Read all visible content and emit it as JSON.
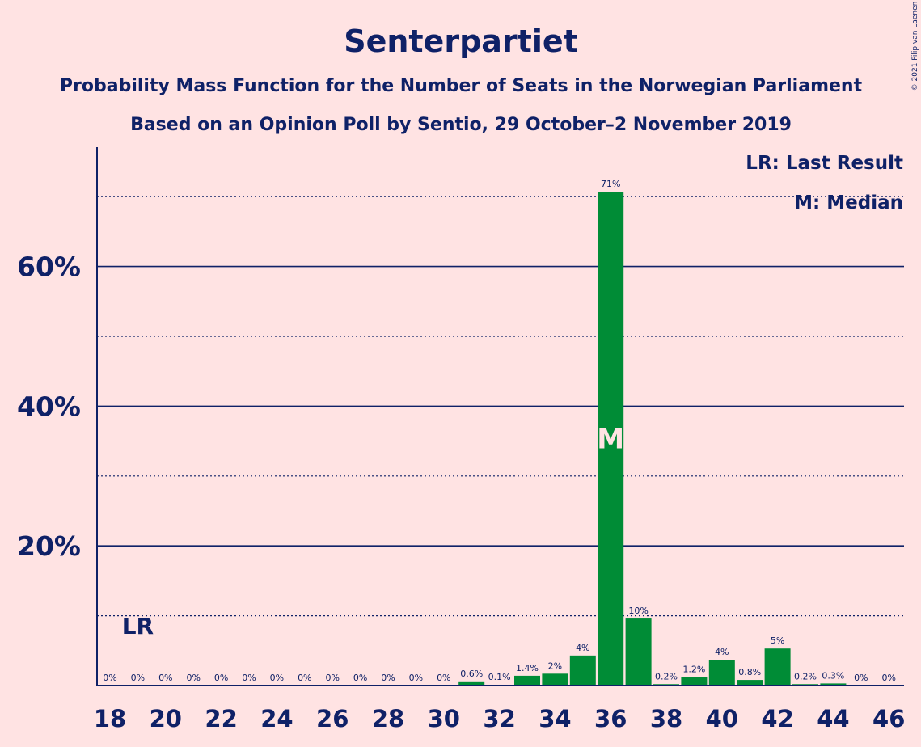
{
  "chart_data": {
    "type": "bar",
    "title": "Senterpartiet",
    "subtitle1": "Probability Mass Function for the Number of Seats in the Norwegian Parliament",
    "subtitle2": "Based on an Opinion Poll by Sentio, 29 October–2 November 2019",
    "x": [
      18,
      19,
      20,
      21,
      22,
      23,
      24,
      25,
      26,
      27,
      28,
      29,
      30,
      31,
      32,
      33,
      34,
      35,
      36,
      37,
      38,
      39,
      40,
      41,
      42,
      43,
      44,
      45,
      46
    ],
    "values": [
      0,
      0,
      0,
      0,
      0,
      0,
      0,
      0,
      0,
      0,
      0,
      0,
      0,
      0.6,
      0.1,
      1.4,
      1.7,
      4.3,
      70.7,
      9.6,
      0.2,
      1.2,
      3.7,
      0.8,
      5.3,
      0.2,
      0.3,
      0,
      0
    ],
    "value_labels": [
      "0%",
      "0%",
      "0%",
      "0%",
      "0%",
      "0%",
      "0%",
      "0%",
      "0%",
      "0%",
      "0%",
      "0%",
      "0%",
      "0.6%",
      "0.1%",
      "1.4%",
      "2%",
      "4%",
      "71%",
      "10%",
      "0.2%",
      "1.2%",
      "4%",
      "0.8%",
      "5%",
      "0.2%",
      "0.3%",
      "0%",
      "0%"
    ],
    "x_tick_labels": [
      "18",
      "20",
      "22",
      "24",
      "26",
      "28",
      "30",
      "32",
      "34",
      "36",
      "38",
      "40",
      "42",
      "44",
      "46"
    ],
    "x_ticks": [
      18,
      20,
      22,
      24,
      26,
      28,
      30,
      32,
      34,
      36,
      38,
      40,
      42,
      44,
      46
    ],
    "y_ticks": [
      20,
      40,
      60
    ],
    "y_tick_labels": [
      "20%",
      "40%",
      "60%"
    ],
    "y_minor_gridlines": [
      10,
      30,
      50,
      70
    ],
    "ylim": [
      0,
      77
    ],
    "last_result_seat": 19,
    "last_result_marker": "LR",
    "median_seat": 36,
    "median_marker": "M",
    "legend": [
      "LR: Last Result",
      "M: Median"
    ],
    "legend_position": "top-right",
    "bar_color": "#008C36",
    "text_color": "#0F2167",
    "background_color": "#FFE3E3",
    "copyright": "© 2021 Filip van Laenen"
  }
}
